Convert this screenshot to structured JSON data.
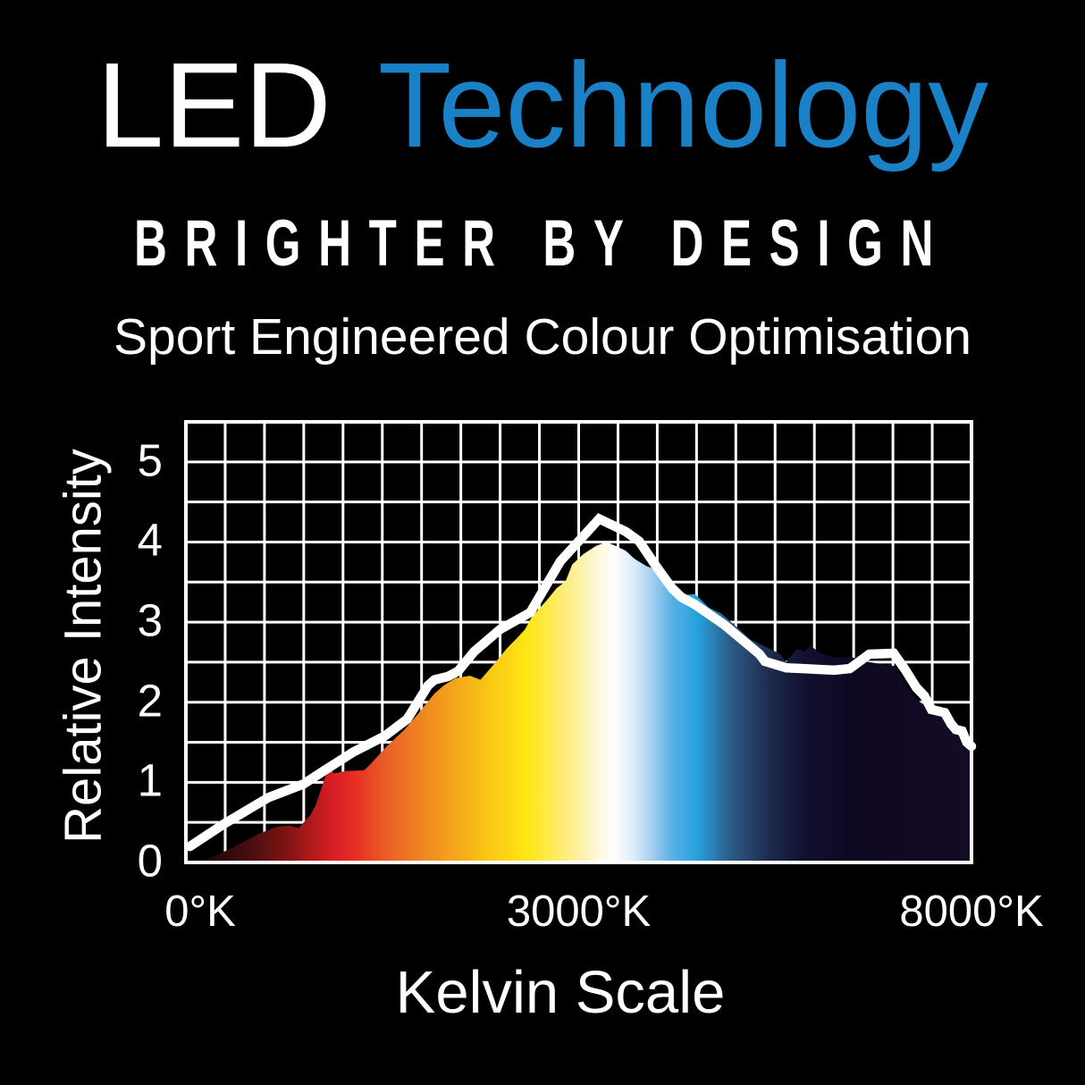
{
  "colors": {
    "background": "#000000",
    "text": "#ffffff",
    "accent_blue": "#1a81c6",
    "grid": "#ffffff",
    "frame": "#ffffff",
    "line": "#ffffff"
  },
  "header": {
    "title_led": "LED",
    "title_technology": "Technology",
    "tagline": "BRIGHTER BY DESIGN",
    "subtitle": "Sport Engineered Colour Optimisation"
  },
  "chart_data": {
    "type": "area",
    "title": "",
    "xlabel": "Kelvin Scale",
    "ylabel": "Relative Intensity",
    "ylim": [
      0,
      5.5
    ],
    "xlim_kelvin": [
      0,
      8000
    ],
    "x_scale": "piecewise-linear: 0K at left edge, 3000K at centre, 8000K at right edge",
    "grid": {
      "columns": 20,
      "rows": 11,
      "line_color": "#ffffff",
      "line_width": 3,
      "frame_width": 4
    },
    "y_ticks": [
      0,
      1,
      2,
      3,
      4,
      5
    ],
    "x_ticks": [
      {
        "kelvin": 0,
        "label": "0°K"
      },
      {
        "kelvin": 3000,
        "label": "3000°K"
      },
      {
        "kelvin": 8000,
        "label": "8000°K"
      }
    ],
    "series": [
      {
        "name": "colour-temperature-spectrum-area",
        "type": "area",
        "fill": "horizontal-spectrum-gradient",
        "points": [
          [
            100,
            0
          ],
          [
            340,
            0.17
          ],
          [
            560,
            0.36
          ],
          [
            700,
            0.45
          ],
          [
            790,
            0.46
          ],
          [
            860,
            0.43
          ],
          [
            950,
            0.59
          ],
          [
            990,
            0.71
          ],
          [
            1040,
            0.95
          ],
          [
            1090,
            1.2
          ],
          [
            1130,
            1.11
          ],
          [
            1220,
            1.14
          ],
          [
            1360,
            1.15
          ],
          [
            1400,
            1.21
          ],
          [
            1540,
            1.46
          ],
          [
            1670,
            1.66
          ],
          [
            1770,
            1.85
          ],
          [
            1900,
            2.11
          ],
          [
            1970,
            2.21
          ],
          [
            2060,
            2.3
          ],
          [
            2170,
            2.33
          ],
          [
            2250,
            2.28
          ],
          [
            2350,
            2.47
          ],
          [
            2450,
            2.67
          ],
          [
            2540,
            2.82
          ],
          [
            2590,
            2.91
          ],
          [
            2640,
            3.06
          ],
          [
            2700,
            3.17
          ],
          [
            2760,
            3.28
          ],
          [
            2830,
            3.42
          ],
          [
            2900,
            3.51
          ],
          [
            2950,
            3.72
          ],
          [
            3060,
            3.85
          ],
          [
            3220,
            3.95
          ],
          [
            3350,
            4.0
          ],
          [
            3450,
            3.96
          ],
          [
            3600,
            3.89
          ],
          [
            3710,
            3.79
          ],
          [
            3860,
            3.7
          ],
          [
            4020,
            3.64
          ],
          [
            4170,
            3.53
          ],
          [
            4360,
            3.34
          ],
          [
            4480,
            3.35
          ],
          [
            4660,
            3.18
          ],
          [
            4810,
            3.11
          ],
          [
            5000,
            2.95
          ],
          [
            5190,
            2.78
          ],
          [
            5340,
            2.71
          ],
          [
            5450,
            2.66
          ],
          [
            5570,
            2.6
          ],
          [
            5640,
            2.5
          ],
          [
            5780,
            2.67
          ],
          [
            5870,
            2.63
          ],
          [
            5950,
            2.71
          ],
          [
            6070,
            2.61
          ],
          [
            6250,
            2.56
          ],
          [
            6480,
            2.56
          ],
          [
            6700,
            2.5
          ],
          [
            7030,
            2.45
          ],
          [
            7200,
            2.15
          ],
          [
            7350,
            2.0
          ],
          [
            7480,
            1.88
          ],
          [
            7680,
            1.78
          ],
          [
            7820,
            1.64
          ],
          [
            7930,
            1.5
          ],
          [
            8000,
            1.4
          ]
        ],
        "gradient_stops": [
          [
            110,
            "#140505"
          ],
          [
            480,
            "#470e10"
          ],
          [
            760,
            "#7d1412"
          ],
          [
            980,
            "#b51a1c"
          ],
          [
            1150,
            "#db2026"
          ],
          [
            1300,
            "#e63024"
          ],
          [
            1520,
            "#ea5c26"
          ],
          [
            1850,
            "#f08c21"
          ],
          [
            2270,
            "#f8c215"
          ],
          [
            2610,
            "#ffe714"
          ],
          [
            2950,
            "#fdee8d"
          ],
          [
            3200,
            "#fdf7d3"
          ],
          [
            3450,
            "#ffffff"
          ],
          [
            3700,
            "#dcebf9"
          ],
          [
            3950,
            "#9fccef"
          ],
          [
            4200,
            "#55b0e5"
          ],
          [
            4500,
            "#27a2de"
          ],
          [
            4960,
            "#2b5881"
          ],
          [
            5420,
            "#1d2c4e"
          ],
          [
            5870,
            "#121030"
          ],
          [
            6550,
            "#0e0820"
          ],
          [
            8000,
            "#150b24"
          ]
        ]
      },
      {
        "name": "relative-intensity-line",
        "type": "line",
        "color": "#ffffff",
        "stroke_width": 10.5,
        "points": [
          [
            30,
            0.2
          ],
          [
            290,
            0.48
          ],
          [
            630,
            0.81
          ],
          [
            900,
            0.98
          ],
          [
            1040,
            1.13
          ],
          [
            1280,
            1.38
          ],
          [
            1520,
            1.58
          ],
          [
            1690,
            1.79
          ],
          [
            1850,
            2.21
          ],
          [
            1900,
            2.28
          ],
          [
            2000,
            2.32
          ],
          [
            2080,
            2.39
          ],
          [
            2200,
            2.63
          ],
          [
            2400,
            2.91
          ],
          [
            2630,
            3.12
          ],
          [
            2860,
            3.76
          ],
          [
            3260,
            4.29
          ],
          [
            3600,
            4.13
          ],
          [
            3770,
            4.01
          ],
          [
            3970,
            3.72
          ],
          [
            4190,
            3.42
          ],
          [
            4310,
            3.31
          ],
          [
            4480,
            3.22
          ],
          [
            4850,
            2.97
          ],
          [
            5300,
            2.6
          ],
          [
            5370,
            2.51
          ],
          [
            5640,
            2.43
          ],
          [
            6250,
            2.4
          ],
          [
            6450,
            2.42
          ],
          [
            6700,
            2.6
          ],
          [
            7010,
            2.61
          ],
          [
            7160,
            2.4
          ],
          [
            7300,
            2.18
          ],
          [
            7400,
            2.08
          ],
          [
            7490,
            1.91
          ],
          [
            7660,
            1.87
          ],
          [
            7740,
            1.73
          ],
          [
            7800,
            1.66
          ],
          [
            7880,
            1.64
          ],
          [
            7940,
            1.5
          ],
          [
            8000,
            1.45
          ]
        ]
      }
    ]
  }
}
